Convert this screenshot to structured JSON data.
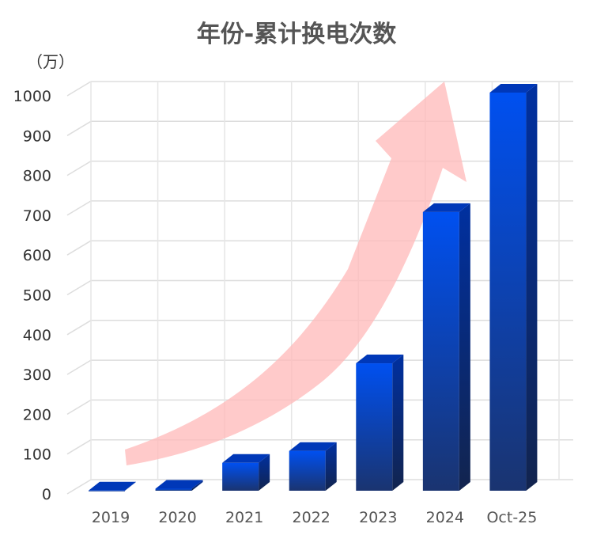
{
  "chart_data": {
    "type": "bar",
    "title": "年份-累计换电次数",
    "ylabel": "（万）",
    "xlabel": "",
    "categories": [
      "2019",
      "2020",
      "2021",
      "2022",
      "2023",
      "2024",
      "Oct-25"
    ],
    "values": [
      0.5,
      5,
      70,
      100,
      320,
      700,
      1000
    ],
    "ylim": [
      0,
      1000
    ],
    "yticks": [
      0,
      100,
      200,
      300,
      400,
      500,
      600,
      700,
      800,
      900,
      1000
    ],
    "grid": true,
    "style": "3d",
    "colors": {
      "bar_top": "#0050f0",
      "bar_bottom": "#1a3470",
      "bar_side": "#0a2a80",
      "arrow": "#ffb3b3"
    }
  }
}
